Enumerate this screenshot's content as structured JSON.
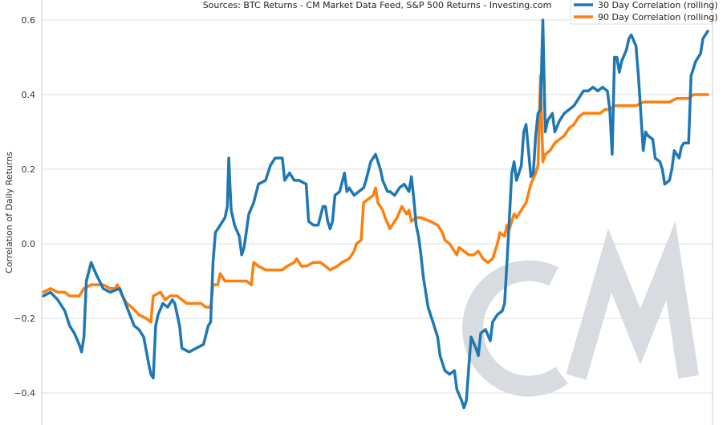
{
  "chart_data": {
    "type": "line",
    "title": "Sources: BTC Returns - CM Market Data Feed,  S&P 500 Returns - Investing.com",
    "ylabel": "Correlation of Daily Returns",
    "xlabel": "",
    "ylim": [
      -0.48,
      0.65
    ],
    "yticks": [
      -0.4,
      -0.2,
      0.0,
      0.2,
      0.4,
      0.6
    ],
    "ytick_labels": [
      "−0.4",
      "−0.2",
      "0.0",
      "0.2",
      "0.4",
      "0.6"
    ],
    "grid": true,
    "legend_position": "top-right",
    "watermark": "CM",
    "colors": {
      "s30": "#1f77b4",
      "s90": "#ff7f0e",
      "grid": "#dddddd",
      "watermark": "#d8dce0"
    },
    "series": [
      {
        "name": "30 Day Correlation (rolling)",
        "color": "#1f77b4",
        "points": [
          [
            0,
            -0.14
          ],
          [
            3,
            -0.13
          ],
          [
            6,
            -0.15
          ],
          [
            9,
            -0.18
          ],
          [
            11,
            -0.22
          ],
          [
            13,
            -0.24
          ],
          [
            15,
            -0.27
          ],
          [
            16,
            -0.29
          ],
          [
            17,
            -0.25
          ],
          [
            18,
            -0.1
          ],
          [
            20,
            -0.05
          ],
          [
            22,
            -0.08
          ],
          [
            25,
            -0.12
          ],
          [
            28,
            -0.13
          ],
          [
            32,
            -0.12
          ],
          [
            35,
            -0.17
          ],
          [
            38,
            -0.22
          ],
          [
            40,
            -0.23
          ],
          [
            42,
            -0.25
          ],
          [
            44,
            -0.32
          ],
          [
            45,
            -0.35
          ],
          [
            46,
            -0.36
          ],
          [
            47,
            -0.22
          ],
          [
            48,
            -0.19
          ],
          [
            50,
            -0.16
          ],
          [
            52,
            -0.17
          ],
          [
            54,
            -0.15
          ],
          [
            55,
            -0.16
          ],
          [
            57,
            -0.22
          ],
          [
            58,
            -0.28
          ],
          [
            61,
            -0.29
          ],
          [
            64,
            -0.28
          ],
          [
            67,
            -0.27
          ],
          [
            69,
            -0.22
          ],
          [
            70,
            -0.21
          ],
          [
            71,
            -0.05
          ],
          [
            72,
            0.03
          ],
          [
            74,
            0.05
          ],
          [
            76,
            0.07
          ],
          [
            77,
            0.1
          ],
          [
            77.6,
            0.23
          ],
          [
            78,
            0.17
          ],
          [
            78.6,
            0.09
          ],
          [
            80,
            0.05
          ],
          [
            82,
            0.02
          ],
          [
            83,
            -0.03
          ],
          [
            84,
            -0.01
          ],
          [
            86,
            0.08
          ],
          [
            88,
            0.11
          ],
          [
            90,
            0.16
          ],
          [
            93,
            0.17
          ],
          [
            95,
            0.21
          ],
          [
            97,
            0.23
          ],
          [
            100,
            0.23
          ],
          [
            101,
            0.17
          ],
          [
            103,
            0.19
          ],
          [
            105,
            0.17
          ],
          [
            107,
            0.17
          ],
          [
            110,
            0.16
          ],
          [
            111,
            0.06
          ],
          [
            113,
            0.05
          ],
          [
            115,
            0.05
          ],
          [
            117,
            0.1
          ],
          [
            118,
            0.1
          ],
          [
            119,
            0.06
          ],
          [
            120,
            0.04
          ],
          [
            121,
            0.06
          ],
          [
            122,
            0.13
          ],
          [
            124,
            0.14
          ],
          [
            126,
            0.19
          ],
          [
            127,
            0.14
          ],
          [
            128,
            0.15
          ],
          [
            130,
            0.13
          ],
          [
            132,
            0.14
          ],
          [
            134,
            0.15
          ],
          [
            135,
            0.17
          ],
          [
            137,
            0.22
          ],
          [
            139,
            0.24
          ],
          [
            141,
            0.2
          ],
          [
            142,
            0.17
          ],
          [
            144,
            0.14
          ],
          [
            145,
            0.14
          ],
          [
            147,
            0.13
          ],
          [
            149,
            0.15
          ],
          [
            151,
            0.16
          ],
          [
            153,
            0.14
          ],
          [
            154,
            0.18
          ],
          [
            155,
            0.12
          ],
          [
            156,
            0.05
          ],
          [
            157,
            0.02
          ],
          [
            158,
            -0.03
          ],
          [
            159,
            -0.09
          ],
          [
            161,
            -0.17
          ],
          [
            163,
            -0.21
          ],
          [
            165,
            -0.25
          ],
          [
            166,
            -0.3
          ],
          [
            168,
            -0.34
          ],
          [
            170,
            -0.35
          ],
          [
            172,
            -0.34
          ],
          [
            173,
            -0.39
          ],
          [
            175,
            -0.42
          ],
          [
            176,
            -0.44
          ],
          [
            177,
            -0.42
          ],
          [
            178,
            -0.33
          ],
          [
            179,
            -0.25
          ],
          [
            181,
            -0.28
          ],
          [
            182,
            -0.3
          ],
          [
            183,
            -0.24
          ],
          [
            185,
            -0.23
          ],
          [
            187,
            -0.26
          ],
          [
            188,
            -0.21
          ],
          [
            190,
            -0.19
          ],
          [
            192,
            -0.18
          ],
          [
            193,
            -0.16
          ],
          [
            194,
            -0.05
          ],
          [
            195,
            0.07
          ],
          [
            196,
            0.19
          ],
          [
            197,
            0.22
          ],
          [
            198,
            0.17
          ],
          [
            200,
            0.21
          ],
          [
            201,
            0.3
          ],
          [
            202,
            0.32
          ],
          [
            203,
            0.25
          ],
          [
            204,
            0.18
          ],
          [
            205,
            0.19
          ],
          [
            206,
            0.29
          ],
          [
            207,
            0.35
          ],
          [
            208,
            0.36
          ],
          [
            209,
            0.6
          ],
          [
            210,
            0.3
          ],
          [
            211,
            0.33
          ],
          [
            212,
            0.34
          ],
          [
            213,
            0.35
          ],
          [
            214,
            0.3
          ],
          [
            216,
            0.33
          ],
          [
            217,
            0.34
          ],
          [
            218,
            0.35
          ],
          [
            220,
            0.36
          ],
          [
            222,
            0.37
          ],
          [
            224,
            0.39
          ],
          [
            226,
            0.41
          ],
          [
            228,
            0.41
          ],
          [
            230,
            0.42
          ],
          [
            232,
            0.41
          ],
          [
            234,
            0.42
          ],
          [
            236,
            0.41
          ],
          [
            237,
            0.36
          ],
          [
            238,
            0.24
          ],
          [
            239,
            0.5
          ],
          [
            240,
            0.5
          ],
          [
            241,
            0.46
          ],
          [
            242,
            0.49
          ],
          [
            244,
            0.52
          ],
          [
            245,
            0.55
          ],
          [
            246,
            0.56
          ],
          [
            248,
            0.53
          ],
          [
            249,
            0.45
          ],
          [
            250,
            0.35
          ],
          [
            251,
            0.25
          ],
          [
            252,
            0.3
          ],
          [
            253,
            0.29
          ],
          [
            255,
            0.28
          ],
          [
            256,
            0.23
          ],
          [
            258,
            0.22
          ],
          [
            259,
            0.2
          ],
          [
            260,
            0.16
          ],
          [
            262,
            0.17
          ],
          [
            263,
            0.2
          ],
          [
            264,
            0.25
          ],
          [
            266,
            0.23
          ],
          [
            267,
            0.26
          ],
          [
            268,
            0.27
          ],
          [
            270,
            0.27
          ],
          [
            271,
            0.45
          ],
          [
            273,
            0.49
          ],
          [
            275,
            0.51
          ],
          [
            276,
            0.55
          ],
          [
            277,
            0.56
          ],
          [
            278,
            0.57
          ]
        ]
      },
      {
        "name": "90 Day Correlation (rolling)",
        "color": "#ff7f0e",
        "points": [
          [
            0,
            -0.13
          ],
          [
            3,
            -0.12
          ],
          [
            6,
            -0.13
          ],
          [
            9,
            -0.13
          ],
          [
            11,
            -0.14
          ],
          [
            15,
            -0.14
          ],
          [
            17,
            -0.12
          ],
          [
            20,
            -0.11
          ],
          [
            25,
            -0.11
          ],
          [
            28,
            -0.12
          ],
          [
            30,
            -0.12
          ],
          [
            31,
            -0.11
          ],
          [
            33,
            -0.14
          ],
          [
            35,
            -0.16
          ],
          [
            37,
            -0.17
          ],
          [
            40,
            -0.19
          ],
          [
            43,
            -0.2
          ],
          [
            45,
            -0.21
          ],
          [
            46,
            -0.14
          ],
          [
            49,
            -0.13
          ],
          [
            51,
            -0.15
          ],
          [
            53,
            -0.14
          ],
          [
            56,
            -0.14
          ],
          [
            58,
            -0.15
          ],
          [
            60,
            -0.16
          ],
          [
            63,
            -0.16
          ],
          [
            66,
            -0.16
          ],
          [
            68,
            -0.17
          ],
          [
            70,
            -0.17
          ],
          [
            71,
            -0.11
          ],
          [
            73,
            -0.11
          ],
          [
            74,
            -0.08
          ],
          [
            76,
            -0.1
          ],
          [
            80,
            -0.1
          ],
          [
            85,
            -0.1
          ],
          [
            87,
            -0.11
          ],
          [
            88,
            -0.05
          ],
          [
            90,
            -0.06
          ],
          [
            93,
            -0.07
          ],
          [
            97,
            -0.07
          ],
          [
            100,
            -0.07
          ],
          [
            102,
            -0.06
          ],
          [
            105,
            -0.05
          ],
          [
            106,
            -0.04
          ],
          [
            108,
            -0.06
          ],
          [
            110,
            -0.06
          ],
          [
            113,
            -0.05
          ],
          [
            116,
            -0.05
          ],
          [
            118,
            -0.06
          ],
          [
            120,
            -0.07
          ],
          [
            123,
            -0.06
          ],
          [
            125,
            -0.05
          ],
          [
            128,
            -0.04
          ],
          [
            130,
            -0.02
          ],
          [
            131,
            0.0
          ],
          [
            133,
            0.01
          ],
          [
            134,
            0.11
          ],
          [
            136,
            0.12
          ],
          [
            138,
            0.13
          ],
          [
            139,
            0.15
          ],
          [
            140,
            0.11
          ],
          [
            142,
            0.09
          ],
          [
            143,
            0.07
          ],
          [
            145,
            0.04
          ],
          [
            146,
            0.05
          ],
          [
            148,
            0.07
          ],
          [
            150,
            0.1
          ],
          [
            152,
            0.08
          ],
          [
            153,
            0.09
          ],
          [
            154,
            0.06
          ],
          [
            156,
            0.07
          ],
          [
            158,
            0.07
          ],
          [
            162,
            0.06
          ],
          [
            165,
            0.05
          ],
          [
            167,
            0.03
          ],
          [
            168,
            0.01
          ],
          [
            170,
            0.0
          ],
          [
            171,
            -0.01
          ],
          [
            172,
            -0.02
          ],
          [
            173,
            -0.03
          ],
          [
            174,
            -0.01
          ],
          [
            176,
            -0.02
          ],
          [
            178,
            -0.03
          ],
          [
            180,
            -0.03
          ],
          [
            182,
            -0.02
          ],
          [
            184,
            -0.04
          ],
          [
            186,
            -0.05
          ],
          [
            188,
            -0.04
          ],
          [
            189,
            -0.02
          ],
          [
            190,
            0.0
          ],
          [
            191,
            0.03
          ],
          [
            193,
            0.02
          ],
          [
            194,
            0.05
          ],
          [
            195,
            0.04
          ],
          [
            196,
            0.06
          ],
          [
            197,
            0.08
          ],
          [
            198,
            0.07
          ],
          [
            200,
            0.09
          ],
          [
            202,
            0.11
          ],
          [
            204,
            0.16
          ],
          [
            206,
            0.19
          ],
          [
            207,
            0.21
          ],
          [
            208,
            0.45
          ],
          [
            209,
            0.22
          ],
          [
            210,
            0.24
          ],
          [
            212,
            0.25
          ],
          [
            214,
            0.27
          ],
          [
            216,
            0.28
          ],
          [
            218,
            0.29
          ],
          [
            220,
            0.31
          ],
          [
            222,
            0.32
          ],
          [
            224,
            0.34
          ],
          [
            226,
            0.35
          ],
          [
            228,
            0.35
          ],
          [
            230,
            0.35
          ],
          [
            233,
            0.35
          ],
          [
            235,
            0.36
          ],
          [
            237,
            0.36
          ],
          [
            239,
            0.37
          ],
          [
            241,
            0.37
          ],
          [
            245,
            0.37
          ],
          [
            248,
            0.37
          ],
          [
            251,
            0.38
          ],
          [
            255,
            0.38
          ],
          [
            258,
            0.38
          ],
          [
            262,
            0.38
          ],
          [
            265,
            0.39
          ],
          [
            268,
            0.39
          ],
          [
            270,
            0.39
          ],
          [
            272,
            0.4
          ],
          [
            275,
            0.4
          ],
          [
            277,
            0.4
          ],
          [
            278,
            0.4
          ]
        ]
      }
    ]
  }
}
